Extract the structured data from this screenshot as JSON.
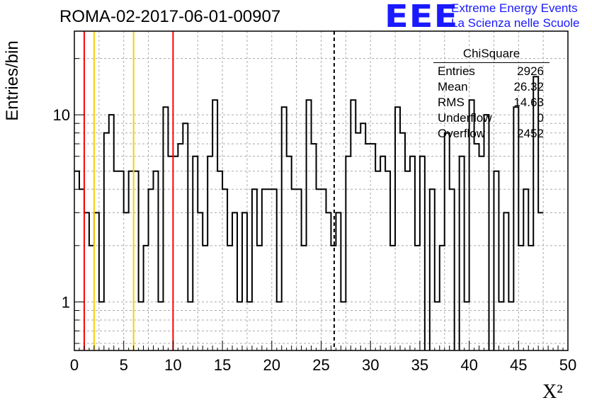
{
  "header": {
    "title": "ROMA-02-2017-06-01-00907",
    "logo": "EEE",
    "logo_line1": "Extreme Energy Events",
    "logo_line2": "La Scienza nelle Scuole"
  },
  "stats_box": {
    "title": "ChiSquare",
    "rows": [
      {
        "label": "Entries",
        "value": "2926"
      },
      {
        "label": "Mean",
        "value": "26.32"
      },
      {
        "label": "RMS",
        "value": "14.63"
      },
      {
        "label": "Underflow",
        "value": "0"
      },
      {
        "label": "Overflow",
        "value": "2452"
      }
    ]
  },
  "chart_data": {
    "type": "histogram",
    "xlabel": "X²",
    "ylabel": "Entries/bin",
    "xlim": [
      0,
      50
    ],
    "ylim": [
      0.55,
      28
    ],
    "yscale": "log",
    "grid": true,
    "bin_width": 0.5,
    "bin_start": 0,
    "x_ticks": [
      "0",
      "5",
      "10",
      "15",
      "20",
      "25",
      "30",
      "35",
      "40",
      "45",
      "50"
    ],
    "y_ticks": [
      "1",
      "10"
    ],
    "values": [
      5,
      4,
      3,
      2,
      3,
      1,
      8,
      10,
      5,
      5,
      3,
      5,
      5,
      1,
      2,
      4,
      5,
      1,
      11,
      6,
      6,
      7,
      9,
      1,
      6,
      3,
      2,
      6,
      12,
      5,
      4,
      2,
      3,
      1,
      3,
      1,
      4,
      2,
      4,
      4,
      4,
      1,
      11,
      6,
      4,
      4,
      2,
      12,
      7,
      4,
      4,
      3,
      2,
      3,
      1,
      6,
      12,
      8,
      9,
      7,
      7,
      5,
      6,
      5,
      2,
      11,
      8,
      5,
      6,
      2,
      6,
      0,
      4,
      1,
      2,
      8,
      4,
      0,
      6,
      1,
      12,
      7,
      6,
      10,
      0,
      5,
      1,
      3,
      1,
      11,
      2,
      4,
      2,
      16,
      3
    ],
    "markers": [
      {
        "x": 1,
        "color": "#ff0000",
        "style": "solid"
      },
      {
        "x": 2,
        "color": "#ffcc00",
        "style": "solid"
      },
      {
        "x": 6,
        "color": "#ffcc00",
        "style": "solid"
      },
      {
        "x": 10,
        "color": "#ff0000",
        "style": "solid"
      },
      {
        "x": 26.32,
        "color": "#000000",
        "style": "dashed"
      }
    ]
  }
}
